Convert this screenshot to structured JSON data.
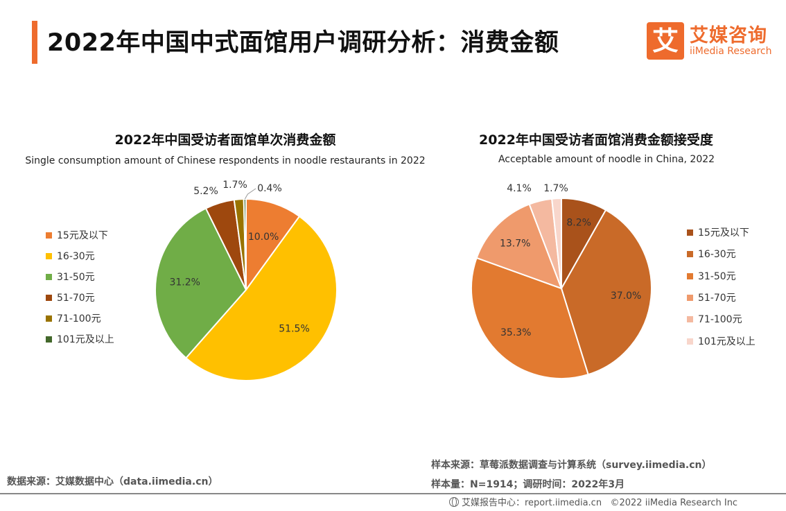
{
  "header": {
    "title": "2022年中国中式面馆用户调研分析：消费金额",
    "logo_mark": "艾",
    "logo_cn": "艾媒咨询",
    "logo_en": "iiMedia Research"
  },
  "colors": {
    "accent": "#ee6b2d"
  },
  "chart_data": [
    {
      "type": "pie",
      "title": "2022年中国受访者面馆单次消费金额",
      "subtitle": "Single consumption amount of Chinese respondents in noodle restaurants in 2022",
      "categories": [
        "15元及以下",
        "16-30元",
        "31-50元",
        "51-70元",
        "71-100元",
        "101元及以上"
      ],
      "values": [
        10.0,
        51.5,
        31.2,
        5.2,
        1.7,
        0.4
      ],
      "labels": [
        "10.0%",
        "51.5%",
        "31.2%",
        "5.2%",
        "1.7%",
        "0.4%"
      ],
      "colors": [
        "#ed7d31",
        "#ffc000",
        "#70ad47",
        "#9e480e",
        "#997300",
        "#43682b"
      ]
    },
    {
      "type": "pie",
      "title": "2022年中国受访者面馆消费金额接受度",
      "subtitle": "Acceptable amount of noodle in China, 2022",
      "categories": [
        "15元及以下",
        "16-30元",
        "31-50元",
        "51-70元",
        "71-100元",
        "101元及以上"
      ],
      "values": [
        8.2,
        37.0,
        35.3,
        13.7,
        4.1,
        1.7
      ],
      "labels": [
        "8.2%",
        "37.0%",
        "35.3%",
        "13.7%",
        "4.1%",
        "1.7%"
      ],
      "colors": [
        "#a9521b",
        "#c96a28",
        "#e27a30",
        "#ef9a6c",
        "#f4b9a0",
        "#f8d6cb"
      ]
    }
  ],
  "footer": {
    "data_source": "数据来源：艾媒数据中心（data.iimedia.cn）",
    "sample_source": "样本来源：草莓派数据调查与计算系统（survey.iimedia.cn）",
    "sample_size": "样本量：N=1914；调研时间：2022年3月",
    "report_center": "艾媒报告中心：report.iimedia.cn",
    "copyright": "©2022 iiMedia Research Inc"
  }
}
